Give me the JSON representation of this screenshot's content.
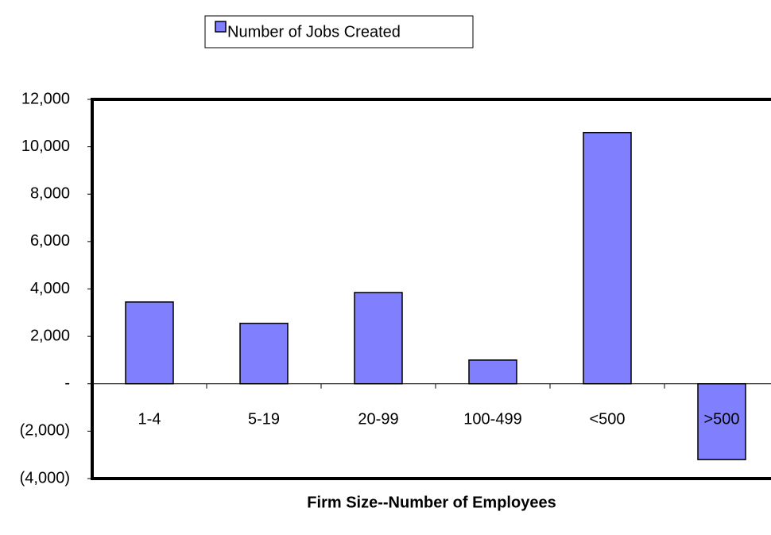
{
  "chart_data": {
    "type": "bar",
    "categories": [
      "1-4",
      "5-19",
      "20-99",
      "100-499",
      "<500",
      ">500"
    ],
    "series": [
      {
        "name": "Number of Jobs Created",
        "color": "#8080ff",
        "values": [
          3450,
          2550,
          3850,
          1000,
          10600,
          -3200
        ]
      }
    ],
    "ylim": [
      -4000,
      12000
    ],
    "yticks": [
      {
        "value": -4000,
        "label": "(4,000)"
      },
      {
        "value": -2000,
        "label": "(2,000)"
      },
      {
        "value": 0,
        "label": "-"
      },
      {
        "value": 2000,
        "label": "2,000"
      },
      {
        "value": 4000,
        "label": "4,000"
      },
      {
        "value": 6000,
        "label": "6,000"
      },
      {
        "value": 8000,
        "label": "8,000"
      },
      {
        "value": 10000,
        "label": "10,000"
      },
      {
        "value": 12000,
        "label": "12,000"
      }
    ],
    "xlabel": "Firm Size--Number of Employees",
    "legend": "top"
  }
}
